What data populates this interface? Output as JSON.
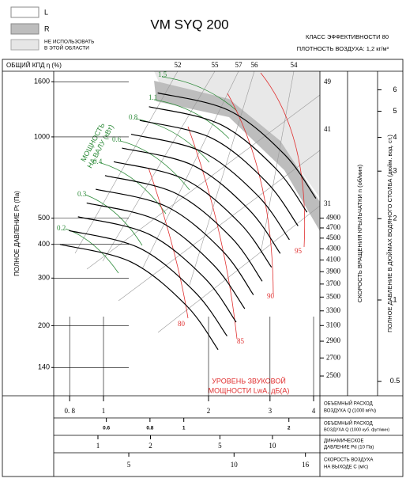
{
  "chart_data": {
    "type": "fan-curves",
    "title": "VM SYQ 200",
    "legend": [
      {
        "label": "L",
        "color": "#ffffff"
      },
      {
        "label": "R",
        "color": "#bdbdbd"
      },
      {
        "label": [
          "НЕ ИСПОЛЬЗОВАТЬ",
          "В ЭТОЙ ОБЛАСТИ"
        ],
        "color": "#e6e6e6"
      }
    ],
    "subtitle": [
      "КЛАСС ЭФФЕКТИВНОСТИ 80",
      "ПЛОТНОСТЬ ВОЗДУХА: 1,2 кг/м³"
    ],
    "efficiency_label": "ОБЩИЙ КПД η (%)",
    "efficiency_values": [
      52,
      55,
      57,
      56,
      54
    ],
    "y_label": "ПОЛНОЕ ДАВЛЕНИЕ Pt (Па)",
    "speed_label": "СКОРОСТЬ ВРАЩЕНИЯ КРЫЛЬЧАТКИ  n (об/мин)",
    "y2_label": "ПОЛНОЕ ДАВЛЕНИЕ В ДЮЙМАХ ВОДЯНОГО СТОЛБА (дюйм. вод. ст.)",
    "power_label": [
      "МОЩНОСТЬ",
      "НА ВАЛУ (кВт)"
    ],
    "power_values": [
      1.5,
      1.1,
      0.8,
      0.6,
      0.4,
      0.3,
      0.2
    ],
    "sound_label": [
      "УРОВЕНЬ ЗВУКОВОЙ",
      "МОЩНОСТИ LwA, дБ(A)"
    ],
    "sound_values": [
      80,
      85,
      90,
      95
    ],
    "log_scale": true,
    "grid": true,
    "xlim": [
      0.72,
      4.17
    ],
    "xticks": [
      {
        "value": 0.8,
        "label": "0. 8"
      },
      1,
      2,
      3,
      4
    ],
    "x_label": [
      "ОБЪЕМНЫЙ РАСХОД",
      "ВОЗДУХА Q (1000 м³/ч)"
    ],
    "ylim": [
      110,
      1750
    ],
    "yticks": [
      140,
      200,
      300,
      400,
      500,
      1000,
      1600
    ],
    "y2lim": [
      0.442,
      7.03
    ],
    "y2ticks": [
      0.5,
      1,
      2,
      3,
      4,
      5,
      6
    ],
    "speed_lim": [
      2298,
      9167
    ],
    "speed_ticks": [
      4900,
      4700,
      4500,
      4300,
      4100,
      3900,
      3700,
      3500,
      3300,
      3100,
      2900,
      2700,
      2500
    ],
    "tip_speed_lim": [
      15.1,
      51.1
    ],
    "tip_speed_ticks": [
      49,
      41,
      31
    ],
    "x_axes": [
      {
        "label": [
          "ОБЪЕМНЫЙ РАСХОД",
          "ВОЗДУХА Q (1000 куб. фут/мин)"
        ],
        "xlim": [
          0.424,
          2.454
        ],
        "xticks": [
          0.6,
          0.8,
          1,
          2
        ]
      },
      {
        "label": [
          "ДИНАМИЧЕСКОЕ",
          "ДАВЛЕНИЕ Pd (10 Па)"
        ],
        "xlim": [
          0.558,
          18.7
        ],
        "xticks": [
          1,
          2,
          5,
          10
        ]
      },
      {
        "label": [
          "СКОРОСТЬ ВОЗДУХА",
          "НА ВЫХОДЕ C (м/с)"
        ],
        "xlim": [
          3.05,
          17.6
        ],
        "xticks": [
          5,
          10,
          16
        ]
      }
    ],
    "series": [
      {
        "color": "#000000",
        "x": [
          1.43,
          2.29,
          3.3,
          4.06
        ],
        "values": [
          1455,
          1252,
          861,
          592
        ]
      },
      {
        "color": "#000000",
        "x": [
          1.35,
          2.16,
          3.11,
          3.83
        ],
        "values": [
          1293,
          1113,
          765,
          526
        ]
      },
      {
        "color": "#000000",
        "x": [
          1.27,
          2.04,
          2.93,
          3.61
        ],
        "values": [
          1151,
          990,
          681,
          468
        ]
      },
      {
        "color": "#000000",
        "x": [
          1.2,
          1.92,
          2.77,
          3.41
        ],
        "values": [
          1023,
          880,
          605,
          416
        ]
      },
      {
        "color": "#000000",
        "x": [
          1.13,
          1.81,
          2.61,
          3.21
        ],
        "values": [
          909,
          783,
          538,
          370
        ]
      },
      {
        "color": "#000000",
        "x": [
          1.07,
          1.71,
          2.46,
          3.03
        ],
        "values": [
          809,
          696,
          479,
          329
        ]
      },
      {
        "color": "#000000",
        "x": [
          1.01,
          1.61,
          2.32,
          2.85
        ],
        "values": [
          719,
          618,
          425,
          292
        ]
      },
      {
        "color": "#000000",
        "x": [
          0.95,
          1.52,
          2.19,
          2.69
        ],
        "values": [
          640,
          551,
          379,
          260
        ]
      },
      {
        "color": "#000000",
        "x": [
          0.895,
          1.43,
          2.06,
          2.54
        ],
        "values": [
          569,
          490,
          337,
          231
        ]
      },
      {
        "color": "#000000",
        "x": [
          0.845,
          1.35,
          1.95,
          2.4
        ],
        "values": [
          506,
          436,
          300,
          206
        ]
      },
      {
        "color": "#000000",
        "x": [
          0.796,
          1.27,
          1.83,
          2.26
        ],
        "values": [
          450,
          387,
          266,
          183
        ]
      },
      {
        "color": "#000000",
        "x": [
          0.75,
          1.2,
          1.73,
          2.13
        ],
        "values": [
          400,
          344,
          237,
          163
        ]
      }
    ]
  }
}
